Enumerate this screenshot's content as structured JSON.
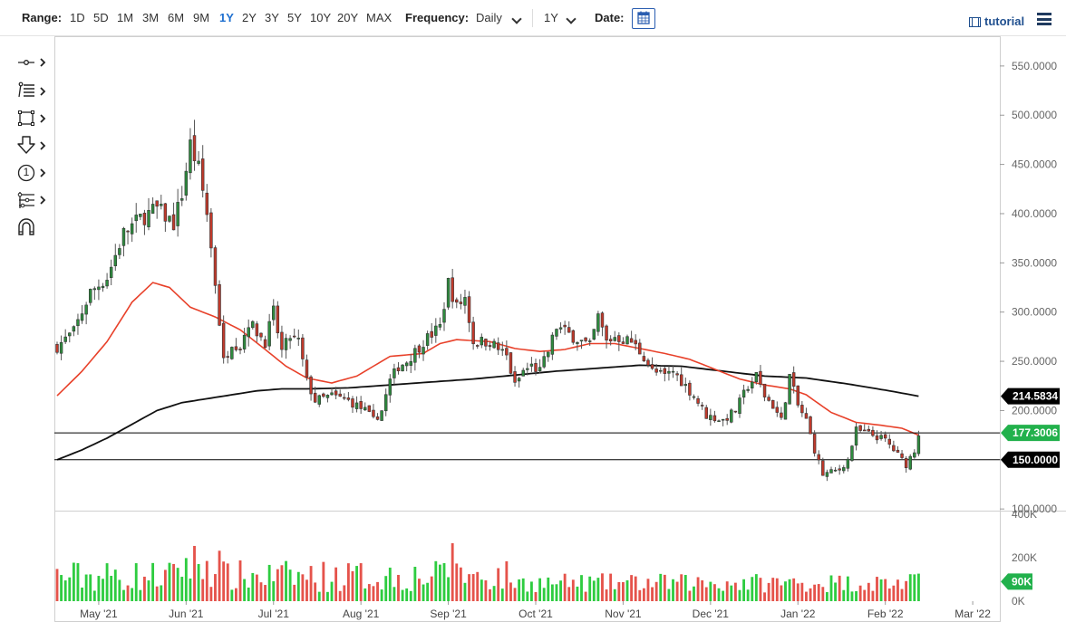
{
  "toolbar": {
    "range_label": "Range:",
    "ranges": [
      "1D",
      "5D",
      "1M",
      "3M",
      "6M",
      "9M",
      "1Y",
      "2Y",
      "3Y",
      "5Y",
      "10Y",
      "20Y",
      "MAX"
    ],
    "active_range": "1Y",
    "frequency_label": "Frequency:",
    "frequency_value": "Daily",
    "period_value": "1Y",
    "date_label": "Date:",
    "tutorial_label": "tutorial",
    "accent_color": "#1e6fd0"
  },
  "drawing_tools": [
    {
      "name": "line-tool-icon"
    },
    {
      "name": "fibonacci-tool-icon"
    },
    {
      "name": "rectangle-tool-icon"
    },
    {
      "name": "arrow-tool-icon"
    },
    {
      "name": "number-marker-icon",
      "text": "1"
    },
    {
      "name": "pitchfork-tool-icon"
    },
    {
      "name": "magnet-icon"
    }
  ],
  "chart_data": {
    "type": "candlestick",
    "x_tick_labels": [
      "May '21",
      "Jun '21",
      "Jul '21",
      "Aug '21",
      "Sep '21",
      "Oct '21",
      "Nov '21",
      "Dec '21",
      "Jan '22",
      "Feb '22",
      "Mar '22"
    ],
    "price_axis": {
      "ticks": [
        "550.0000",
        "500.0000",
        "450.0000",
        "400.0000",
        "350.0000",
        "300.0000",
        "250.0000",
        "200.0000",
        "150.0000",
        "100.0000"
      ],
      "range": [
        100,
        560
      ]
    },
    "volume_axis": {
      "ticks": [
        "400K",
        "200K",
        "0K"
      ],
      "range": [
        0,
        400000
      ]
    },
    "price_badges": [
      {
        "label": "214.5834",
        "value": 214.58,
        "color": "#000000",
        "series": "200-day moving average"
      },
      {
        "label": "177.3006",
        "value": 177.3,
        "color": "#22b14c",
        "series": "last price"
      },
      {
        "label": "150.0000",
        "value": 150.0,
        "color": "#000000",
        "series": "horizontal line"
      }
    ],
    "horizontal_lines": [
      177.3,
      150.0
    ],
    "volume_badge": {
      "label": "90K",
      "value": 90000,
      "color": "#22b14c"
    },
    "up_color": "#2e8b3e",
    "down_color": "#c0392b",
    "volume_up_color": "#2ecc40",
    "volume_down_color": "#e5534b",
    "ma_fast_color": "#e8412a",
    "ma_slow_color": "#111111",
    "month_index": [
      10,
      31,
      52,
      73,
      94,
      115,
      136,
      157,
      178,
      199,
      220
    ],
    "anchors": [
      [
        0,
        265
      ],
      [
        4,
        280
      ],
      [
        8,
        320
      ],
      [
        12,
        335
      ],
      [
        16,
        380
      ],
      [
        20,
        395
      ],
      [
        24,
        405
      ],
      [
        28,
        390
      ],
      [
        30,
        420
      ],
      [
        32,
        470
      ],
      [
        34,
        445
      ],
      [
        36,
        400
      ],
      [
        38,
        330
      ],
      [
        40,
        250
      ],
      [
        42,
        270
      ],
      [
        44,
        265
      ],
      [
        46,
        290
      ],
      [
        50,
        270
      ],
      [
        52,
        300
      ],
      [
        54,
        260
      ],
      [
        56,
        275
      ],
      [
        58,
        270
      ],
      [
        60,
        230
      ],
      [
        62,
        210
      ],
      [
        66,
        215
      ],
      [
        70,
        210
      ],
      [
        74,
        200
      ],
      [
        76,
        190
      ],
      [
        78,
        200
      ],
      [
        80,
        230
      ],
      [
        82,
        245
      ],
      [
        84,
        250
      ],
      [
        88,
        270
      ],
      [
        92,
        285
      ],
      [
        94,
        330
      ],
      [
        96,
        305
      ],
      [
        98,
        315
      ],
      [
        100,
        270
      ],
      [
        104,
        270
      ],
      [
        108,
        255
      ],
      [
        110,
        225
      ],
      [
        112,
        240
      ],
      [
        114,
        245
      ],
      [
        116,
        240
      ],
      [
        118,
        260
      ],
      [
        120,
        285
      ],
      [
        124,
        275
      ],
      [
        128,
        265
      ],
      [
        130,
        295
      ],
      [
        132,
        270
      ],
      [
        134,
        275
      ],
      [
        138,
        270
      ],
      [
        141,
        255
      ],
      [
        143,
        240
      ],
      [
        146,
        235
      ],
      [
        148,
        240
      ],
      [
        150,
        230
      ],
      [
        153,
        215
      ],
      [
        156,
        195
      ],
      [
        160,
        190
      ],
      [
        163,
        200
      ],
      [
        166,
        225
      ],
      [
        168,
        235
      ],
      [
        170,
        215
      ],
      [
        172,
        205
      ],
      [
        174,
        190
      ],
      [
        176,
        235
      ],
      [
        178,
        205
      ],
      [
        180,
        190
      ],
      [
        182,
        160
      ],
      [
        184,
        135
      ],
      [
        188,
        140
      ],
      [
        190,
        150
      ],
      [
        192,
        180
      ],
      [
        196,
        175
      ],
      [
        199,
        170
      ],
      [
        202,
        155
      ],
      [
        204,
        145
      ],
      [
        206,
        160
      ],
      [
        207,
        177
      ]
    ],
    "ma50_anchors": [
      [
        0,
        215
      ],
      [
        6,
        240
      ],
      [
        12,
        270
      ],
      [
        18,
        310
      ],
      [
        23,
        330
      ],
      [
        27,
        325
      ],
      [
        32,
        305
      ],
      [
        38,
        295
      ],
      [
        44,
        282
      ],
      [
        50,
        262
      ],
      [
        55,
        245
      ],
      [
        60,
        233
      ],
      [
        66,
        228
      ],
      [
        72,
        235
      ],
      [
        76,
        245
      ],
      [
        80,
        255
      ],
      [
        88,
        258
      ],
      [
        92,
        268
      ],
      [
        96,
        272
      ],
      [
        104,
        270
      ],
      [
        110,
        263
      ],
      [
        116,
        260
      ],
      [
        122,
        262
      ],
      [
        128,
        268
      ],
      [
        134,
        268
      ],
      [
        140,
        263
      ],
      [
        146,
        258
      ],
      [
        152,
        252
      ],
      [
        158,
        242
      ],
      [
        164,
        232
      ],
      [
        170,
        226
      ],
      [
        176,
        222
      ],
      [
        180,
        216
      ],
      [
        186,
        198
      ],
      [
        192,
        188
      ],
      [
        198,
        185
      ],
      [
        203,
        182
      ],
      [
        207,
        175
      ]
    ],
    "ma200_anchors": [
      [
        0,
        150
      ],
      [
        6,
        160
      ],
      [
        12,
        172
      ],
      [
        18,
        186
      ],
      [
        24,
        200
      ],
      [
        30,
        208
      ],
      [
        36,
        212
      ],
      [
        42,
        216
      ],
      [
        48,
        220
      ],
      [
        54,
        222
      ],
      [
        60,
        222
      ],
      [
        70,
        223
      ],
      [
        80,
        226
      ],
      [
        90,
        229
      ],
      [
        100,
        232
      ],
      [
        110,
        236
      ],
      [
        120,
        240
      ],
      [
        130,
        243
      ],
      [
        140,
        246
      ],
      [
        150,
        245
      ],
      [
        160,
        240
      ],
      [
        170,
        235
      ],
      [
        180,
        233
      ],
      [
        190,
        227
      ],
      [
        200,
        220
      ],
      [
        207,
        214.6
      ]
    ]
  }
}
